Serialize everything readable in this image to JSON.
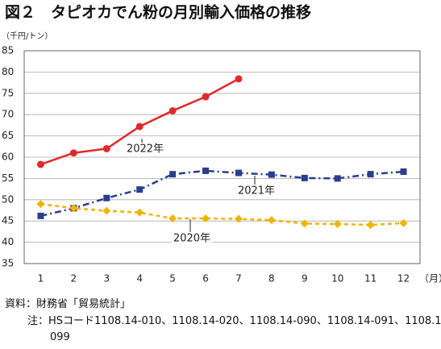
{
  "chart_data": {
    "type": "line",
    "title": "図２　タピオカでん粉の月別輸入価格の推移",
    "y_unit": "（千円/トン）",
    "x_unit": "（月）",
    "categories": [
      "1",
      "2",
      "3",
      "4",
      "5",
      "6",
      "7",
      "8",
      "9",
      "10",
      "11",
      "12"
    ],
    "series": [
      {
        "name": "2022年",
        "color": "#e02a2a",
        "marker": "circle",
        "dash": "solid",
        "values": [
          58.3,
          61,
          62,
          67.2,
          70.9,
          74.2,
          78.4,
          null,
          null,
          null,
          null,
          null
        ]
      },
      {
        "name": "2021年",
        "color": "#2a3f8c",
        "marker": "square",
        "dash": "dashdot",
        "values": [
          46.2,
          48,
          50.4,
          52.4,
          56,
          56.8,
          56.3,
          55.9,
          55.1,
          55,
          56,
          56.6
        ]
      },
      {
        "name": "2020年",
        "color": "#f0b400",
        "marker": "diamond",
        "dash": "dashed",
        "values": [
          49,
          48,
          47.4,
          47,
          45.6,
          45.6,
          45.5,
          45.2,
          44.4,
          44.3,
          44.1,
          44.5
        ]
      }
    ],
    "ylim": [
      35,
      85
    ],
    "yticks": [
      35,
      40,
      45,
      50,
      55,
      60,
      65,
      70,
      75,
      80,
      85
    ],
    "grid": true,
    "source": "資料：財務省「貿易統計」",
    "note": "注：HSコード1108.14-010、1108.14-020、1108.14-090、1108.14-091、1108.14-099"
  }
}
